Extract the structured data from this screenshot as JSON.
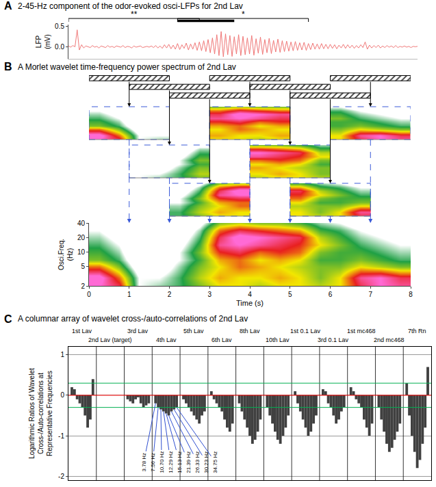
{
  "chart_data": [
    {
      "panel": "A",
      "type": "line",
      "title": "2-45-Hz component of the odor-evoked osci-LFPs for 2nd Lav",
      "ylabel": "LFP (mV)",
      "x": [
        0,
        0.05,
        0.1,
        0.15,
        0.2,
        0.25,
        0.3,
        0.35,
        0.4,
        0.45,
        0.5,
        0.55,
        0.6,
        0.65,
        0.7,
        0.75,
        0.8,
        0.85,
        0.9,
        0.95,
        1,
        1.05,
        1.1,
        1.15,
        1.2,
        1.25,
        1.3,
        1.35,
        1.4,
        1.45,
        1.5,
        1.55,
        1.6,
        1.65,
        1.7,
        1.75,
        1.8,
        1.85,
        1.9,
        1.95,
        2,
        2.05,
        2.1,
        2.15,
        2.2,
        2.25,
        2.3,
        2.35,
        2.4,
        2.45,
        2.5,
        2.55,
        2.6,
        2.65,
        2.7,
        2.75,
        2.8,
        2.85,
        2.9,
        2.95,
        3,
        3.05,
        3.1,
        3.15,
        3.2,
        3.25,
        3.3,
        3.35,
        3.4,
        3.45,
        3.5,
        3.55,
        3.6,
        3.65,
        3.7,
        3.75,
        3.8,
        3.85,
        3.9,
        3.95,
        4,
        4.05,
        4.1,
        4.15,
        4.2,
        4.25,
        4.3,
        4.35,
        4.4,
        4.45,
        4.5,
        4.55,
        4.6,
        4.65,
        4.7,
        4.75,
        4.8,
        4.85,
        4.9,
        4.95,
        5,
        5.05,
        5.1,
        5.15,
        5.2,
        5.25,
        5.3,
        5.35,
        5.4,
        5.45,
        5.5,
        5.55,
        5.6,
        5.65,
        5.7,
        5.75,
        5.8,
        5.85,
        5.9,
        5.95,
        6,
        6.05,
        6.1,
        6.15,
        6.2,
        6.25,
        6.3,
        6.35,
        6.4,
        6.45,
        6.5,
        6.55,
        6.6,
        6.65,
        6.7,
        6.75,
        6.8,
        6.85,
        6.9,
        6.95,
        7,
        7.05,
        7.1,
        7.15,
        7.2,
        7.25,
        7.3,
        7.35,
        7.4,
        7.45,
        7.5,
        7.55,
        7.6,
        7.65,
        7.7,
        7.75,
        7.8,
        7.85,
        7.9,
        7.95,
        8
      ],
      "values": [
        0.02,
        -0.01,
        0.03,
        0.0,
        0.42,
        -0.08,
        0.05,
        -0.03,
        0.02,
        0.0,
        -0.02,
        0.03,
        -0.01,
        0.01,
        -0.03,
        0.02,
        0.0,
        -0.02,
        0.03,
        -0.01,
        0.01,
        -0.02,
        0.02,
        0.0,
        -0.01,
        0.03,
        -0.02,
        0.01,
        0.0,
        -0.03,
        0.02,
        -0.01,
        0.01,
        0.02,
        -0.02,
        0.0,
        0.01,
        -0.01,
        0.02,
        -0.02,
        0.03,
        -0.03,
        0.02,
        -0.04,
        0.05,
        -0.03,
        0.06,
        -0.05,
        0.04,
        -0.06,
        0.08,
        -0.07,
        0.05,
        -0.04,
        0.09,
        -0.08,
        0.07,
        -0.06,
        0.1,
        -0.09,
        0.12,
        -0.1,
        0.15,
        -0.12,
        0.18,
        -0.15,
        0.22,
        -0.18,
        0.3,
        -0.22,
        0.38,
        -0.25,
        0.32,
        -0.2,
        0.28,
        -0.24,
        0.25,
        -0.18,
        0.3,
        -0.22,
        0.26,
        -0.2,
        0.22,
        -0.18,
        0.28,
        -0.21,
        0.2,
        -0.16,
        0.24,
        -0.19,
        0.18,
        -0.15,
        0.21,
        -0.17,
        0.16,
        -0.13,
        0.19,
        -0.14,
        0.15,
        -0.12,
        0.14,
        -0.11,
        0.12,
        -0.1,
        0.13,
        -0.09,
        0.1,
        -0.08,
        0.11,
        -0.09,
        0.08,
        -0.07,
        0.09,
        -0.06,
        0.07,
        -0.06,
        0.08,
        -0.05,
        0.06,
        -0.05,
        0.06,
        -0.04,
        0.05,
        -0.05,
        0.04,
        -0.03,
        0.06,
        -0.04,
        0.05,
        -0.03,
        0.04,
        -0.04,
        0.03,
        -0.03,
        0.05,
        -0.02,
        0.12,
        -0.06,
        0.04,
        -0.03,
        0.03,
        -0.02,
        0.04,
        -0.03,
        0.02,
        -0.02,
        0.03,
        -0.01,
        0.02,
        -0.02,
        0.03,
        -0.02,
        0.01,
        -0.01,
        0.02,
        -0.01,
        0.01,
        -0.02,
        0.01,
        0.0,
        0.01
      ],
      "color": "#f07878",
      "xlim": [
        0,
        8
      ],
      "ylim": [
        -0.3,
        0.55
      ],
      "yticks": [
        {
          "value": 0,
          "label": "0.0"
        },
        {
          "value": 0.5,
          "label": "0.5"
        }
      ],
      "tick_labels": "y",
      "grid": false,
      "brackets": [
        {
          "start": 0,
          "end": 3,
          "label": "**"
        },
        {
          "start": 2.5,
          "end": 5.5,
          "label": "*"
        }
      ],
      "bar": {
        "start": 2.5,
        "end": 3.8
      }
    },
    {
      "panel": "B",
      "type": "heatmap",
      "title": "A Morlet wavelet time-frequency power spectrum of 2nd Lav",
      "xlabel": "Time (s)",
      "ylabel": "Osci.Freq. (Hz)",
      "x": [
        0.25,
        0.75,
        1.25,
        1.75,
        2.25,
        2.75,
        3.25,
        3.75,
        4.25,
        4.75,
        5.25,
        5.75,
        6.25,
        6.75,
        7.25,
        7.75
      ],
      "y": [
        2,
        3,
        5,
        7,
        10,
        14,
        20,
        28,
        40
      ],
      "z": [
        [
          0.9,
          0.8,
          0.3,
          0.35,
          0.4,
          0.5,
          0.6,
          0.6,
          0.55,
          0.6,
          0.6,
          0.55,
          0.6,
          0.8,
          0.9,
          0.85
        ],
        [
          0.95,
          0.7,
          0.3,
          0.3,
          0.4,
          0.55,
          0.65,
          0.6,
          0.6,
          0.65,
          0.6,
          0.5,
          0.6,
          0.85,
          0.9,
          0.8
        ],
        [
          0.7,
          0.5,
          0.2,
          0.2,
          0.35,
          0.5,
          0.6,
          0.7,
          0.65,
          0.6,
          0.55,
          0.5,
          0.5,
          0.6,
          0.55,
          0.5
        ],
        [
          0.5,
          0.4,
          0.15,
          0.2,
          0.3,
          0.45,
          0.65,
          0.7,
          0.6,
          0.65,
          0.6,
          0.45,
          0.45,
          0.5,
          0.45,
          0.4
        ],
        [
          0.45,
          0.35,
          0.1,
          0.15,
          0.3,
          0.5,
          0.75,
          0.8,
          0.7,
          0.75,
          0.7,
          0.5,
          0.45,
          0.45,
          0.4,
          0.35
        ],
        [
          0.4,
          0.3,
          0.1,
          0.1,
          0.25,
          0.45,
          0.85,
          0.9,
          0.85,
          0.8,
          0.75,
          0.6,
          0.5,
          0.4,
          0.35,
          0.3
        ],
        [
          0.35,
          0.25,
          0.05,
          0.1,
          0.2,
          0.4,
          0.8,
          0.95,
          0.9,
          0.85,
          0.8,
          0.55,
          0.45,
          0.35,
          0.3,
          0.25
        ],
        [
          0.3,
          0.2,
          0.05,
          0.05,
          0.15,
          0.35,
          0.7,
          0.8,
          0.75,
          0.7,
          0.65,
          0.45,
          0.4,
          0.3,
          0.25,
          0.2
        ],
        [
          0.2,
          0.15,
          0.05,
          0.05,
          0.1,
          0.25,
          0.5,
          0.55,
          0.5,
          0.5,
          0.45,
          0.35,
          0.3,
          0.2,
          0.15,
          0.1
        ]
      ],
      "zlim": [
        0,
        1
      ],
      "xlim": [
        0,
        8
      ],
      "xticks": [
        0,
        1,
        2,
        3,
        4,
        5,
        6,
        7,
        8
      ],
      "ylim": [
        2,
        40
      ],
      "yticks": [
        2,
        5,
        10,
        20,
        40
      ],
      "log": "y",
      "windows": [
        {
          "start": 0,
          "end": 2,
          "row": 1
        },
        {
          "start": 1,
          "end": 3,
          "row": 2
        },
        {
          "start": 2,
          "end": 4,
          "row": 3
        },
        {
          "start": 3,
          "end": 5,
          "row": 1
        },
        {
          "start": 4,
          "end": 6,
          "row": 2
        },
        {
          "start": 5,
          "end": 7,
          "row": 3
        },
        {
          "start": 6,
          "end": 8,
          "row": 1
        }
      ]
    },
    {
      "panel": "C",
      "type": "bar",
      "title": "A columnar array of wavelet cross-/auto-correlations of 2nd Lav",
      "ylabel": "Logarithmic Ratios of Wavelet Cross-/Auto-correlations at Representative Frequencies",
      "categories": [
        "1st Lav",
        "2nd Lav (target)",
        "3rd Lav",
        "4th Lav",
        "5th Lav",
        "6th Lav",
        "8th Lav",
        "10th Lav",
        "1st 0.1 Lav",
        "3rd 0.1 Lav",
        "1st mc468",
        "2nd mc468",
        "7th Rn"
      ],
      "series": [
        {
          "name": "3.78 Hz",
          "values": [
            0.2,
            0,
            -0.1,
            -0.2,
            -0.1,
            0.1,
            -0.2,
            -0.3,
            0.1,
            0.15,
            0.2,
            -0.3,
            0.3
          ]
        },
        {
          "name": "7.56 Hz",
          "values": [
            0.15,
            0,
            -0.15,
            -0.3,
            -0.2,
            -0.1,
            -0.4,
            -0.5,
            -0.2,
            0.1,
            0.1,
            -0.6,
            -0.5
          ]
        },
        {
          "name": "10.70 Hz",
          "values": [
            -0.1,
            0,
            -0.2,
            -0.35,
            -0.3,
            -0.2,
            -0.6,
            -0.7,
            -0.4,
            -0.2,
            -0.1,
            -0.9,
            -1.0
          ]
        },
        {
          "name": "12.29 Hz",
          "values": [
            -0.2,
            0,
            -0.1,
            -0.4,
            -0.4,
            -0.3,
            -0.8,
            -0.9,
            -0.6,
            -0.3,
            -0.2,
            -1.2,
            -1.4
          ]
        },
        {
          "name": "15.13 Hz",
          "values": [
            -0.3,
            0,
            -0.05,
            -0.45,
            -0.5,
            -0.4,
            -1.0,
            -1.1,
            -0.8,
            -0.5,
            -0.3,
            -1.4,
            -1.8
          ]
        },
        {
          "name": "21.39 Hz",
          "values": [
            -0.5,
            0,
            -0.2,
            -0.5,
            -0.6,
            -0.6,
            -1.2,
            -1.2,
            -1.0,
            -0.7,
            -0.6,
            -1.3,
            -1.6
          ]
        },
        {
          "name": "26.33 Hz",
          "values": [
            -0.8,
            0,
            -0.3,
            -0.4,
            -0.7,
            -0.8,
            -1.1,
            -1.0,
            -0.9,
            -0.6,
            -0.8,
            -1.1,
            -1.2
          ]
        },
        {
          "name": "30.23 Hz",
          "values": [
            -0.6,
            0,
            -0.25,
            -0.35,
            -0.5,
            -0.9,
            -0.9,
            -0.8,
            -0.7,
            -0.4,
            -1.0,
            -0.9,
            -0.8
          ]
        },
        {
          "name": "34.75 Hz",
          "values": [
            0.4,
            0,
            -0.2,
            -0.3,
            -0.4,
            -0.7,
            -0.6,
            -0.5,
            -0.5,
            -0.3,
            -0.7,
            -0.7,
            0.7
          ]
        }
      ],
      "color": "#404040",
      "ylim": [
        -2.1,
        1.2
      ],
      "yticks": [
        -2,
        -1,
        0,
        1
      ],
      "grid": true,
      "tick_labels": "y",
      "reference_lines": [
        {
          "value": 0,
          "color": "#ff0000"
        },
        {
          "value": 0.3,
          "color": "#00b050"
        },
        {
          "value": -0.3,
          "color": "#00b050"
        }
      ],
      "leaders_at": "4th Lav"
    }
  ]
}
